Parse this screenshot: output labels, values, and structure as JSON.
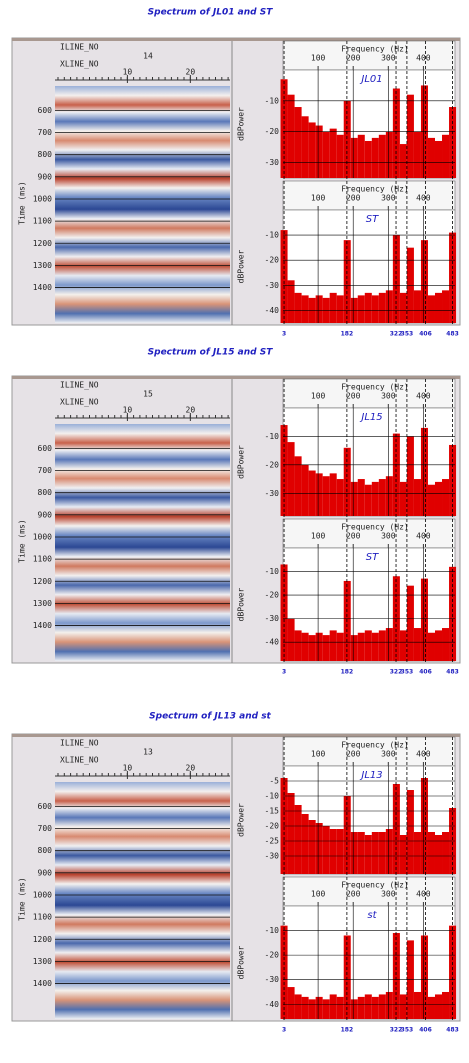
{
  "panels": [
    {
      "title": "Spectrum of JL01 and ST",
      "iline_label": "ILINE_NO",
      "iline_value": "14",
      "xline_label": "XLINE_NO",
      "xline_ticks": [
        10,
        20
      ],
      "xline_lim": [
        -1.5,
        26.3
      ],
      "time_label": "Time (ms)",
      "time_ticks": [
        600,
        700,
        800,
        900,
        1000,
        1100,
        1200,
        1300,
        1400
      ],
      "time_lim": [
        490,
        1560
      ],
      "freq_label": "Frequency (Hz)",
      "freq_ticks": [
        100,
        200,
        300,
        400
      ],
      "freq_lim": [
        0,
        490
      ],
      "freqs": [
        3,
        23,
        43,
        63,
        83,
        103,
        123,
        143,
        163,
        183,
        203,
        223,
        243,
        263,
        283,
        303,
        323,
        343,
        363,
        383,
        403,
        423,
        443,
        463,
        483
      ],
      "markers": [
        3,
        182,
        322,
        353,
        406,
        483
      ],
      "spectra": [
        {
          "name": "JL01",
          "ylabel": "dBPower",
          "ylim": [
            -35,
            0
          ],
          "yticks": [
            -10,
            -20,
            -30
          ],
          "color": "#e00000",
          "values": [
            -3,
            -8,
            -12,
            -15,
            -17,
            -18,
            -20,
            -19,
            -21,
            -10,
            -22,
            -21,
            -23,
            -22,
            -21,
            -20,
            -6,
            -24,
            -8,
            -20,
            -5,
            -22,
            -23,
            -21,
            -12
          ]
        },
        {
          "name": "ST",
          "ylabel": "dBPower",
          "ylim": [
            -45,
            0
          ],
          "yticks": [
            -10,
            -20,
            -30,
            -40
          ],
          "color": "#e00000",
          "values": [
            -8,
            -28,
            -33,
            -34,
            -35,
            -34,
            -35,
            -33,
            -34,
            -12,
            -35,
            -34,
            -33,
            -34,
            -33,
            -32,
            -10,
            -33,
            -15,
            -32,
            -12,
            -34,
            -33,
            -32,
            -9
          ]
        }
      ]
    },
    {
      "title": "Spectrum of JL15 and ST",
      "iline_label": "ILINE_NO",
      "iline_value": "15",
      "xline_label": "XLINE_NO",
      "xline_ticks": [
        10,
        20
      ],
      "xline_lim": [
        -1.5,
        26.3
      ],
      "time_label": "Time (ms)",
      "time_ticks": [
        600,
        700,
        800,
        900,
        1000,
        1100,
        1200,
        1300,
        1400
      ],
      "time_lim": [
        490,
        1560
      ],
      "freq_label": "Frequency (Hz)",
      "freq_ticks": [
        100,
        200,
        300,
        400
      ],
      "freq_lim": [
        0,
        490
      ],
      "freqs": [
        3,
        23,
        43,
        63,
        83,
        103,
        123,
        143,
        163,
        183,
        203,
        223,
        243,
        263,
        283,
        303,
        323,
        343,
        363,
        383,
        403,
        423,
        443,
        463,
        483
      ],
      "markers": [
        3,
        182,
        322,
        353,
        406,
        483
      ],
      "spectra": [
        {
          "name": "JL15",
          "ylabel": "dBPower",
          "ylim": [
            -38,
            0
          ],
          "yticks": [
            -10,
            -20,
            -30
          ],
          "color": "#e00000",
          "values": [
            -6,
            -12,
            -17,
            -20,
            -22,
            -23,
            -24,
            -23,
            -25,
            -14,
            -26,
            -25,
            -27,
            -26,
            -25,
            -24,
            -9,
            -26,
            -10,
            -25,
            -7,
            -27,
            -26,
            -25,
            -13
          ]
        },
        {
          "name": "ST",
          "ylabel": "dBPower",
          "ylim": [
            -48,
            0
          ],
          "yticks": [
            -10,
            -20,
            -30,
            -40
          ],
          "color": "#e00000",
          "values": [
            -7,
            -30,
            -35,
            -36,
            -37,
            -36,
            -37,
            -35,
            -36,
            -14,
            -37,
            -36,
            -35,
            -36,
            -35,
            -34,
            -12,
            -35,
            -16,
            -34,
            -13,
            -36,
            -35,
            -34,
            -8
          ]
        }
      ]
    },
    {
      "title": "Spectrum of JL13 and st",
      "iline_label": "ILINE_NO",
      "iline_value": "13",
      "xline_label": "XLINE_NO",
      "xline_ticks": [
        10,
        20
      ],
      "xline_lim": [
        -1.5,
        26.3
      ],
      "time_label": "Time (ms)",
      "time_ticks": [
        600,
        700,
        800,
        900,
        1000,
        1100,
        1200,
        1300,
        1400
      ],
      "time_lim": [
        490,
        1560
      ],
      "freq_label": "Frequency (Hz)",
      "freq_ticks": [
        100,
        200,
        300,
        400
      ],
      "freq_lim": [
        0,
        490
      ],
      "freqs": [
        3,
        23,
        43,
        63,
        83,
        103,
        123,
        143,
        163,
        183,
        203,
        223,
        243,
        263,
        283,
        303,
        323,
        343,
        363,
        383,
        403,
        423,
        443,
        463,
        483
      ],
      "markers": [
        3,
        182,
        322,
        353,
        406,
        483
      ],
      "spectra": [
        {
          "name": "JL13",
          "ylabel": "dBPower",
          "ylim": [
            -36,
            0
          ],
          "yticks": [
            -5,
            -10,
            -15,
            -20,
            -25,
            -30
          ],
          "color": "#e00000",
          "values": [
            -4,
            -9,
            -13,
            -16,
            -18,
            -19,
            -20,
            -21,
            -21,
            -10,
            -22,
            -22,
            -23,
            -22,
            -22,
            -21,
            -6,
            -23,
            -8,
            -22,
            -4,
            -22,
            -23,
            -22,
            -14
          ]
        },
        {
          "name": "st",
          "ylabel": "dBPower",
          "ylim": [
            -46,
            0
          ],
          "yticks": [
            -10,
            -20,
            -30,
            -40
          ],
          "color": "#e00000",
          "values": [
            -8,
            -33,
            -36,
            -37,
            -38,
            -37,
            -38,
            -36,
            -37,
            -12,
            -38,
            -37,
            -36,
            -37,
            -36,
            -35,
            -11,
            -36,
            -14,
            -35,
            -12,
            -37,
            -36,
            -35,
            -8
          ]
        }
      ]
    }
  ]
}
